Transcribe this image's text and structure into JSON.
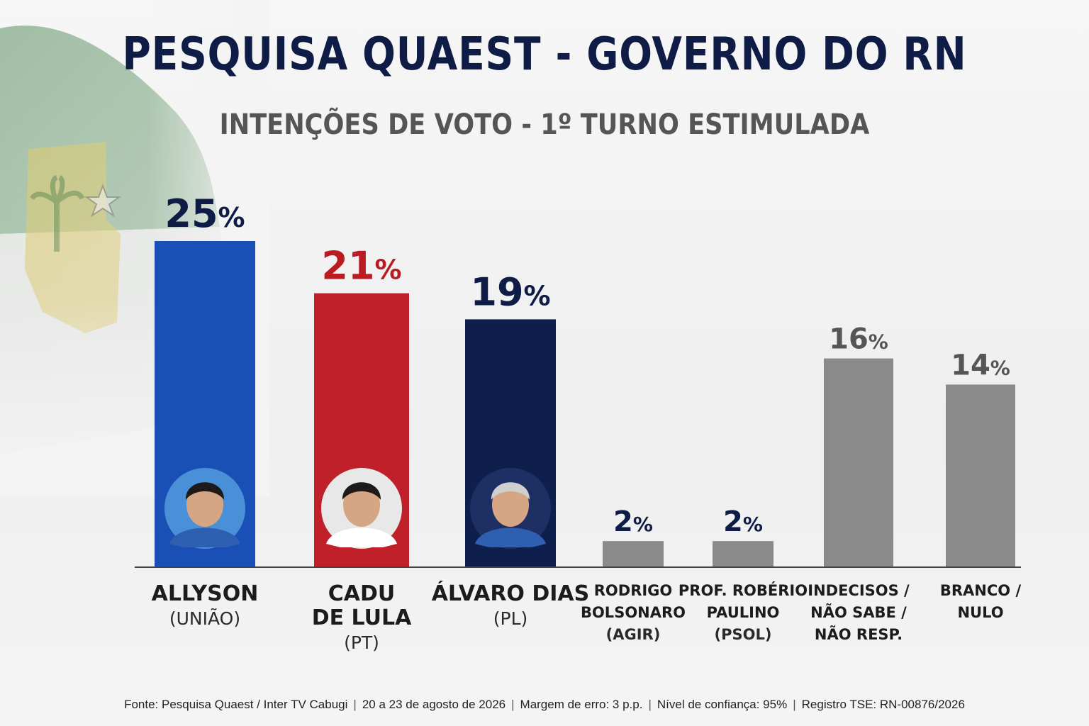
{
  "title": "PESQUISA QUAEST - GOVERNO DO RN",
  "subtitle": "INTENÇÕES DE VOTO - 1º TURNO ESTIMULADA",
  "colors": {
    "title": "#0f1c45",
    "blue": "#1a4fb5",
    "red": "#c0202a",
    "navy": "#0f1f4d",
    "gray": "#8a8a8a",
    "label_red": "#b91c22",
    "label_dark": "#0f1c45",
    "label_gray": "#555555"
  },
  "chart_data": {
    "type": "bar",
    "title": "PESQUISA QUAEST - GOVERNO DO RN",
    "subtitle": "INTENÇÕES DE VOTO - 1º TURNO ESTIMULADA",
    "ylim": [
      0,
      25
    ],
    "grid": false,
    "categories": [
      {
        "name_lines": [
          "ALLYSON"
        ],
        "party": "(UNIÃO)",
        "value": 25,
        "label": "25%",
        "color": "blue",
        "label_color": "label_dark",
        "photo": "candidate-photo"
      },
      {
        "name_lines": [
          "CADU",
          "DE LULA"
        ],
        "party": "(PT)",
        "value": 21,
        "label": "21%",
        "color": "red",
        "label_color": "label_red",
        "photo": "candidate-photo"
      },
      {
        "name_lines": [
          "ÁLVARO DIAS"
        ],
        "party": "(PL)",
        "value": 19,
        "label": "19%",
        "color": "navy",
        "label_color": "label_dark",
        "photo": "candidate-photo"
      },
      {
        "name_lines": [
          "RODRIGO",
          "BOLSONARO"
        ],
        "party": "(AGIR)",
        "value": 2,
        "label": "2%",
        "color": "gray",
        "label_color": "label_dark",
        "photo": null
      },
      {
        "name_lines": [
          "PROF. ROBÉRIO",
          "PAULINO"
        ],
        "party": "(PSOL)",
        "value": 2,
        "label": "2%",
        "color": "gray",
        "label_color": "label_dark",
        "photo": null
      },
      {
        "name_lines": [
          "INDECISOS /",
          "NÃO SABE /",
          "NÃO RESP."
        ],
        "party": "",
        "value": 16,
        "label": "16%",
        "color": "gray",
        "label_color": "label_gray",
        "photo": null
      },
      {
        "name_lines": [
          "BRANCO /",
          "NULO"
        ],
        "party": "",
        "value": 14,
        "label": "14%",
        "color": "gray",
        "label_color": "label_gray",
        "photo": null
      }
    ]
  },
  "footer": {
    "items": [
      "Fonte: Pesquisa Quaest / Inter TV Cabugi",
      "20 a 23 de agosto de 2026",
      "Margem de erro: 3 p.p.",
      "Nível de confiança: 95%",
      "Registro TSE: RN-00876/2026"
    ],
    "separator": "|"
  }
}
